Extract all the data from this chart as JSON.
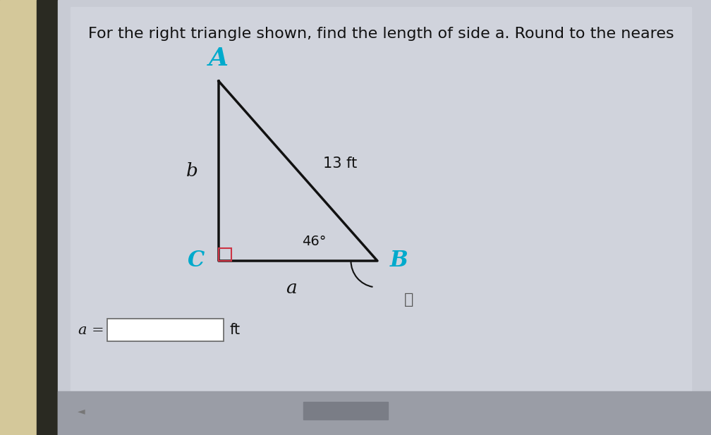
{
  "title_text": "For the right triangle shown, find the length of side a. Round to the neares",
  "bg_outer_left": "#d4c89a",
  "bg_bezel": "#2a2a22",
  "bg_panel": "#c8cbd4",
  "bg_panel_dark": "#b8bbc4",
  "vertex_A": [
    0.275,
    0.8
  ],
  "vertex_C": [
    0.275,
    0.455
  ],
  "vertex_B": [
    0.52,
    0.455
  ],
  "label_A": "A",
  "label_B": "B",
  "label_C": "C",
  "label_a": "a",
  "label_b": "b",
  "label_hyp": "13 ft",
  "label_angle": "46°",
  "triangle_color": "#111111",
  "right_angle_color": "#cc3344",
  "cyan_color": "#00aacc",
  "black_color": "#111111",
  "gray_color": "#888888",
  "input_box_color": "#aaaaaa",
  "title_fontsize": 16,
  "label_fontsize_large": 22,
  "label_fontsize_med": 18,
  "label_fontsize_small": 14
}
